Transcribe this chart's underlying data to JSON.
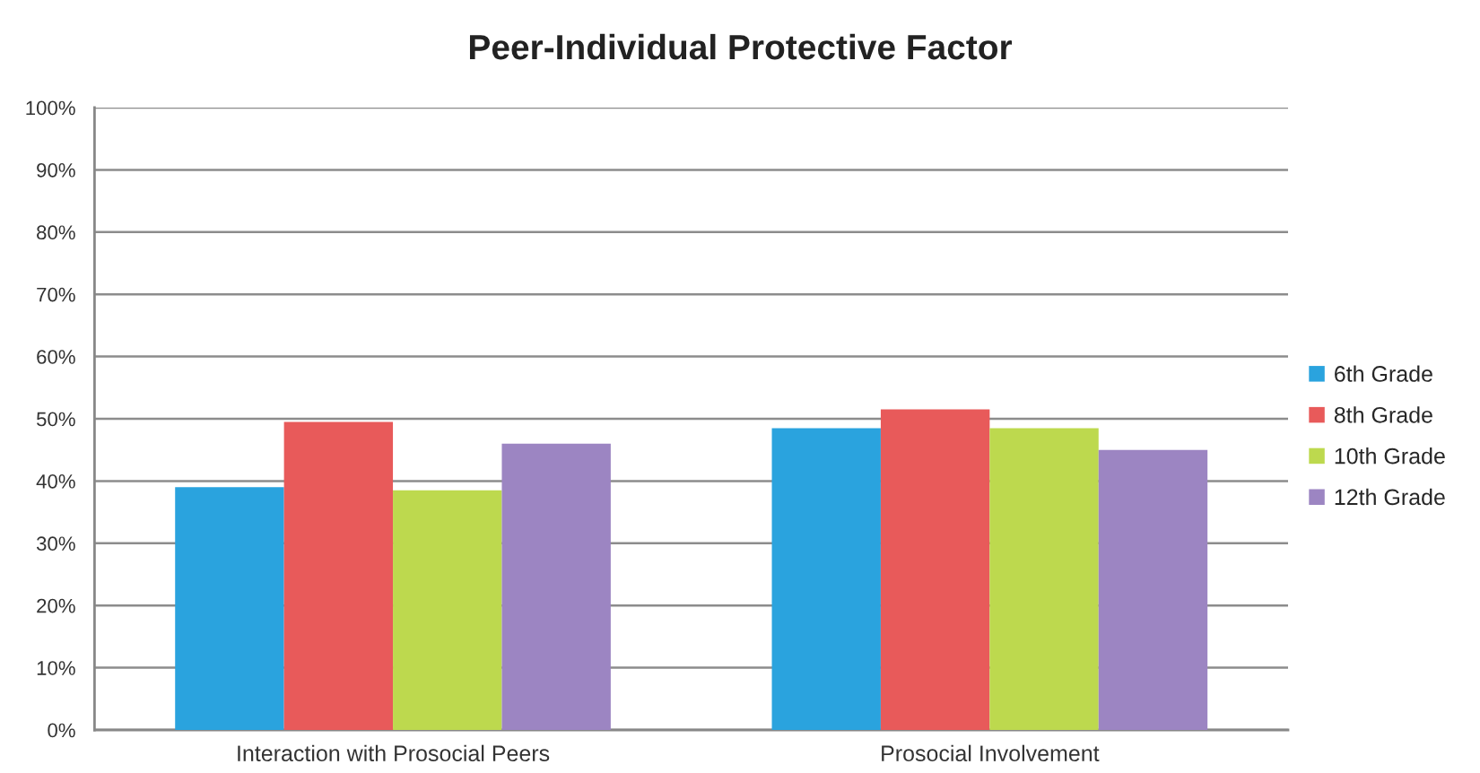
{
  "chart_data": {
    "type": "bar",
    "title": "Peer-Individual Protective Factor",
    "categories": [
      "Interaction with Prosocial Peers",
      "Prosocial Involvement"
    ],
    "series": [
      {
        "name": "6th Grade",
        "color": "#2aa3de",
        "values": [
          39,
          48.5
        ]
      },
      {
        "name": "8th Grade",
        "color": "#e85a5a",
        "values": [
          49.5,
          51.5
        ]
      },
      {
        "name": "10th Grade",
        "color": "#bdd94e",
        "values": [
          38.5,
          48.5
        ]
      },
      {
        "name": "12th Grade",
        "color": "#9c85c2",
        "values": [
          46,
          45
        ]
      }
    ],
    "ylim": [
      0,
      100
    ],
    "yticks": [
      {
        "value": 0,
        "label": "0%"
      },
      {
        "value": 10,
        "label": "10%"
      },
      {
        "value": 20,
        "label": "20%"
      },
      {
        "value": 30,
        "label": "30%"
      },
      {
        "value": 40,
        "label": "40%"
      },
      {
        "value": 50,
        "label": "50%"
      },
      {
        "value": 60,
        "label": "60%"
      },
      {
        "value": 70,
        "label": "70%"
      },
      {
        "value": 80,
        "label": "80%"
      },
      {
        "value": 90,
        "label": "90%"
      },
      {
        "value": 100,
        "label": "100%"
      }
    ],
    "grid": "y",
    "legend": "right"
  }
}
